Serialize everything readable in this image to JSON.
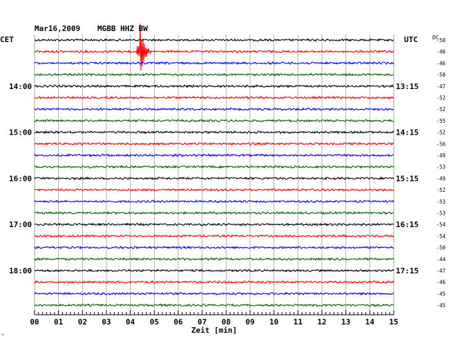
{
  "header": {
    "date": "Mar16,2009",
    "station": "MGBB HHZ BW",
    "left_zone": "CET",
    "right_zone": "UTC",
    "dc_label": "DC"
  },
  "footer": {
    "xlabel": "Zeit [min]",
    "corner_mark": "^"
  },
  "chart_data": {
    "type": "line",
    "title": "Mar16,2009   MGBB HHZ BW",
    "xlabel": "Zeit [min]",
    "xlim": [
      0,
      15
    ],
    "x_ticks": [
      "00",
      "01",
      "02",
      "03",
      "04",
      "05",
      "06",
      "07",
      "08",
      "09",
      "10",
      "11",
      "12",
      "13",
      "14",
      "15"
    ],
    "left_hour_labels": [
      {
        "row": 4,
        "label": "14:00"
      },
      {
        "row": 8,
        "label": "15:00"
      },
      {
        "row": 12,
        "label": "16:00"
      },
      {
        "row": 16,
        "label": "17:00"
      },
      {
        "row": 20,
        "label": "18:00"
      }
    ],
    "right_hour_labels": [
      {
        "row": 4,
        "label": "13:15"
      },
      {
        "row": 8,
        "label": "14:15"
      },
      {
        "row": 12,
        "label": "15:15"
      },
      {
        "row": 16,
        "label": "16:15"
      },
      {
        "row": 20,
        "label": "17:15"
      }
    ],
    "trace_colors": [
      "#000000",
      "#ff0000",
      "#0000ff",
      "#006400"
    ],
    "dc_values": [
      -50,
      -46,
      -46,
      -50,
      -47,
      -52,
      -52,
      -55,
      -52,
      -56,
      -49,
      -53,
      -49,
      -52,
      -53,
      -53,
      -54,
      -54,
      -50,
      -44,
      -47,
      -46,
      -45,
      -45
    ],
    "event": {
      "row": 1,
      "minute": 4.4,
      "description_visible": false
    }
  }
}
